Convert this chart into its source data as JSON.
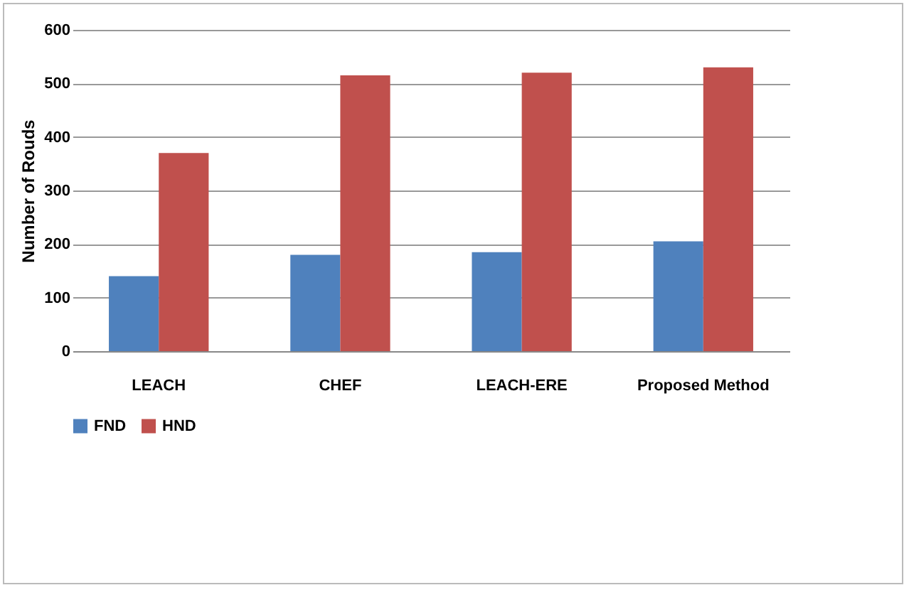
{
  "chart_data": {
    "type": "bar",
    "ylabel": "Number of Rouds",
    "categories": [
      "LEACH",
      "CHEF",
      "LEACH-ERE",
      "Proposed Method"
    ],
    "series": [
      {
        "name": "FND",
        "color": "#4f81bd",
        "values": [
          140,
          180,
          185,
          205
        ]
      },
      {
        "name": "HND",
        "color": "#c0504d",
        "values": [
          370,
          515,
          520,
          530
        ]
      }
    ],
    "ylim": [
      0,
      600
    ],
    "yticks": [
      0,
      100,
      200,
      300,
      400,
      500,
      600
    ],
    "grid": "y",
    "legend": "bottom"
  }
}
